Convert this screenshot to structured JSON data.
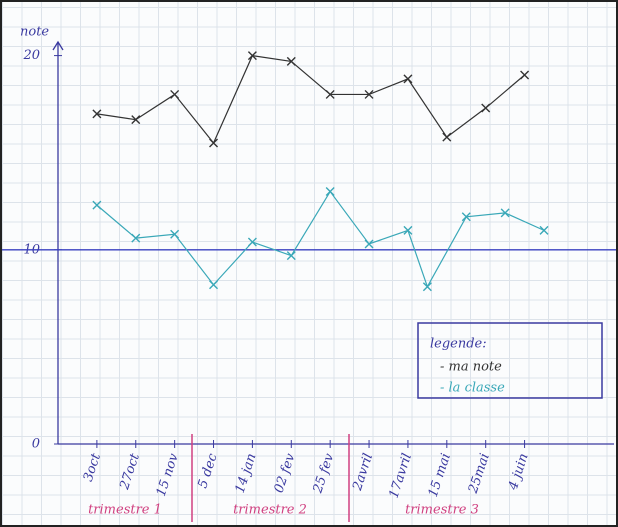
{
  "chart_data": {
    "type": "line",
    "y_label": "note",
    "xticks": [
      {
        "value": 0,
        "label": "3oct"
      },
      {
        "value": 1,
        "label": "27oct"
      },
      {
        "value": 2,
        "label": "15 nov"
      },
      {
        "value": 3,
        "label": "5 dec"
      },
      {
        "value": 4,
        "label": "14 jan"
      },
      {
        "value": 5,
        "label": "02 fev"
      },
      {
        "value": 6,
        "label": "25 fev"
      },
      {
        "value": 7,
        "label": "2avril"
      },
      {
        "value": 8,
        "label": "17avril"
      },
      {
        "value": 9,
        "label": "15 mai"
      },
      {
        "value": 10,
        "label": "25mai"
      },
      {
        "value": 11,
        "label": "4 juin"
      }
    ],
    "xlim": [
      -1,
      13.3
    ],
    "ylim": [
      0,
      20.7
    ],
    "yticks": [
      0,
      10,
      20
    ],
    "hline": 10,
    "groups": [
      "trimestre 1",
      "trimestre 2",
      "trimestre 3"
    ],
    "legend_title": "legende:",
    "series": [
      {
        "name": "- ma note",
        "color": "#333333",
        "x": [
          0,
          1,
          2,
          3,
          4,
          5,
          6,
          7,
          8,
          9,
          10,
          11
        ],
        "values": [
          17,
          16.7,
          18,
          15.5,
          20,
          19.7,
          18,
          18,
          18.8,
          15.8,
          17.3,
          19
        ]
      },
      {
        "name": "- la classe",
        "color": "#3aa8b8",
        "x": [
          0,
          1,
          2,
          3,
          4,
          5,
          6,
          7,
          8,
          8.5,
          9.5,
          10.5,
          11.5
        ],
        "values": [
          12.3,
          10.6,
          10.8,
          8.2,
          10.4,
          9.7,
          13,
          10.3,
          11,
          8.1,
          11.7,
          11.9,
          11
        ]
      }
    ]
  }
}
